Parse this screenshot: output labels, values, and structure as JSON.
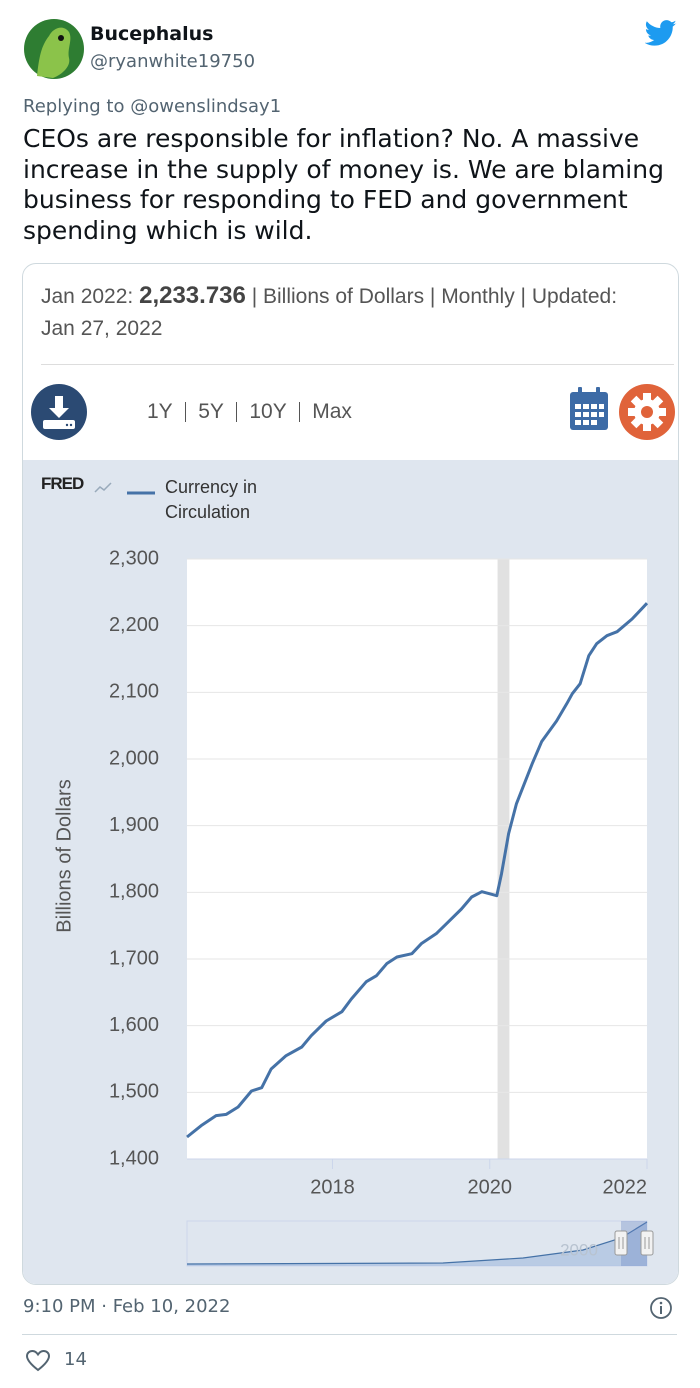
{
  "author": {
    "name": "Bucephalus",
    "handle": "@ryanwhite19750"
  },
  "reply": {
    "prefix": "Replying to",
    "mention": "@owenslindsay1"
  },
  "tweet": {
    "text_lines": [
      "CEOs are responsible for inflation? No. A massive",
      "increase in the supply of money is. We are blaming",
      "business for responding to FED and government",
      "spending which is wild."
    ]
  },
  "card": {
    "date_label": "Jan 2022:",
    "latest_value": "2,233.736",
    "details": "| Billions of Dollars | Monthly | Updated:",
    "updated": "Jan 27, 2022",
    "ranges": [
      "1Y",
      "5Y",
      "10Y",
      "Max"
    ]
  },
  "chart_data": {
    "type": "line",
    "source": "FRED",
    "y_label": "Billions of Dollars",
    "x": [
      2016.15,
      2016.33,
      2016.52,
      2016.65,
      2016.8,
      2016.97,
      2017.1,
      2017.22,
      2017.41,
      2017.61,
      2017.73,
      2017.92,
      2018.12,
      2018.24,
      2018.43,
      2018.56,
      2018.69,
      2018.82,
      2019.01,
      2019.13,
      2019.32,
      2019.45,
      2019.64,
      2019.77,
      2019.9,
      2020.09,
      2020.15,
      2020.24,
      2020.34,
      2020.54,
      2020.66,
      2020.85,
      2020.98,
      2021.05,
      2021.15,
      2021.26,
      2021.36,
      2021.49,
      2021.62,
      2021.81,
      2022.0
    ],
    "series": [
      {
        "name": "Currency in Circulation",
        "color": "#4572a7",
        "values": [
          1433,
          1450,
          1465,
          1467,
          1478,
          1502,
          1507,
          1535,
          1555,
          1568,
          1585,
          1607,
          1621,
          1640,
          1666,
          1675,
          1693,
          1703,
          1708,
          1723,
          1738,
          1753,
          1775,
          1793,
          1801,
          1795,
          1828,
          1888,
          1933,
          1993,
          2026,
          2057,
          2083,
          2098,
          2113,
          2155,
          2173,
          2185,
          2191,
          2210,
          2233.736
        ]
      }
    ],
    "xlim": [
      2016.15,
      2022.0
    ],
    "xticks": [
      2018,
      2020,
      2022
    ],
    "ylim": [
      1400,
      2300
    ],
    "yticks": [
      {
        "value": 1400,
        "label": "1,400"
      },
      {
        "value": 1500,
        "label": "1,500"
      },
      {
        "value": 1600,
        "label": "1,600"
      },
      {
        "value": 1700,
        "label": "1,700"
      },
      {
        "value": 1800,
        "label": "1,800"
      },
      {
        "value": 1900,
        "label": "1,900"
      },
      {
        "value": 2000,
        "label": "2,000"
      },
      {
        "value": 2100,
        "label": "2,100"
      },
      {
        "value": 2200,
        "label": "2,200"
      },
      {
        "value": 2300,
        "label": "2,300"
      }
    ],
    "grid": true,
    "shaded_periods": [
      [
        2020.1,
        2020.25
      ]
    ],
    "navigator_label": "2000"
  },
  "footer": {
    "timestamp": "9:10 PM · Feb 10, 2022",
    "likes": 14
  }
}
